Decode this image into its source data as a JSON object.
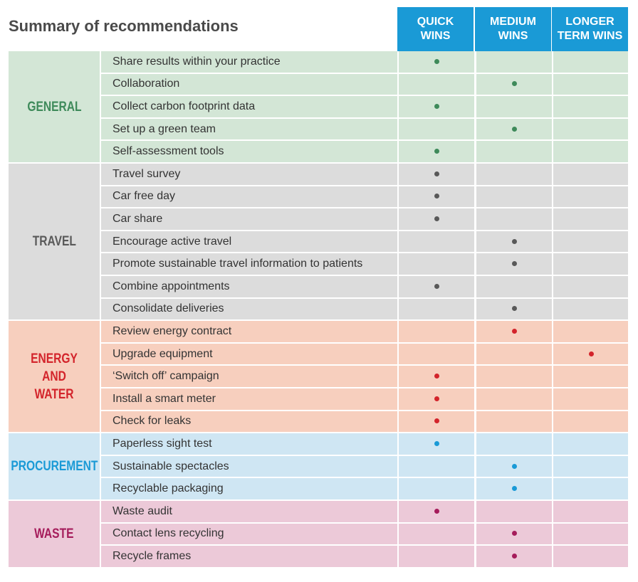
{
  "title": "Summary of recommendations",
  "columns": [
    "QUICK WINS",
    "MEDIUM WINS",
    "LONGER TERM WINS"
  ],
  "header_color": "#1a9ad6",
  "groups": [
    {
      "name": "GENERAL",
      "color": "#3e8a5a",
      "background": "#d3e6d6",
      "rows": [
        {
          "label": "Share results within your practice",
          "cells": [
            true,
            false,
            false
          ]
        },
        {
          "label": "Collaboration",
          "cells": [
            false,
            true,
            false
          ]
        },
        {
          "label": "Collect carbon footprint data",
          "cells": [
            true,
            false,
            false
          ]
        },
        {
          "label": "Set up a green team",
          "cells": [
            false,
            true,
            false
          ]
        },
        {
          "label": "Self-assessment tools",
          "cells": [
            true,
            false,
            false
          ]
        }
      ]
    },
    {
      "name": "TRAVEL",
      "color": "#595959",
      "background": "#dcdcdc",
      "rows": [
        {
          "label": "Travel survey",
          "cells": [
            true,
            false,
            false
          ]
        },
        {
          "label": "Car free day",
          "cells": [
            true,
            false,
            false
          ]
        },
        {
          "label": "Car share",
          "cells": [
            true,
            false,
            false
          ]
        },
        {
          "label": "Encourage active travel",
          "cells": [
            false,
            true,
            false
          ]
        },
        {
          "label": "Promote sustainable travel information to patients",
          "cells": [
            false,
            true,
            false
          ]
        },
        {
          "label": "Combine appointments",
          "cells": [
            true,
            false,
            false
          ]
        },
        {
          "label": "Consolidate deliveries",
          "cells": [
            false,
            true,
            false
          ]
        }
      ]
    },
    {
      "name": "ENERGY AND WATER",
      "color": "#d3242b",
      "background": "#f7cfbe",
      "rows": [
        {
          "label": "Review energy contract",
          "cells": [
            false,
            true,
            false
          ]
        },
        {
          "label": "Upgrade equipment",
          "cells": [
            false,
            false,
            true
          ]
        },
        {
          "label": "‘Switch off’ campaign",
          "cells": [
            true,
            false,
            false
          ]
        },
        {
          "label": "Install a smart meter",
          "cells": [
            true,
            false,
            false
          ]
        },
        {
          "label": "Check for leaks",
          "cells": [
            true,
            false,
            false
          ]
        }
      ]
    },
    {
      "name": "PROCUREMENT",
      "color": "#1a9ad6",
      "background": "#cfe6f3",
      "rows": [
        {
          "label": "Paperless sight test",
          "cells": [
            true,
            false,
            false
          ]
        },
        {
          "label": "Sustainable spectacles",
          "cells": [
            false,
            true,
            false
          ]
        },
        {
          "label": "Recyclable packaging",
          "cells": [
            false,
            true,
            false
          ]
        }
      ]
    },
    {
      "name": "WASTE",
      "color": "#a51c5b",
      "background": "#ecc9d8",
      "rows": [
        {
          "label": "Waste audit",
          "cells": [
            true,
            false,
            false
          ]
        },
        {
          "label": "Contact lens recycling",
          "cells": [
            false,
            true,
            false
          ]
        },
        {
          "label": "Recycle frames",
          "cells": [
            false,
            true,
            false
          ]
        }
      ]
    }
  ]
}
